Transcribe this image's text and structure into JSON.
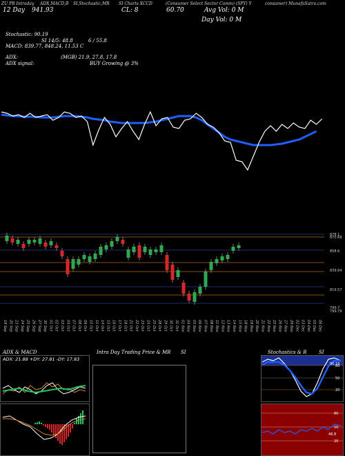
{
  "header": {
    "line1": [
      "ZU PB Intraday",
      "ADX,MACD,B",
      "SI,Stochastic,MR",
      "SI Charts XCCD",
      "(Consumer Select Sector Comm) (SPY) Y",
      "consumer) MunafaSutra.com"
    ],
    "price_row": {
      "open_label": "12 Day",
      "open_value": "941.93",
      "close_label": "CL: 8",
      "close_value": "60.70",
      "avg_label": "Avg Vol: 0  M"
    },
    "day_vol": "Day Vol: 0   M"
  },
  "indicators": {
    "stochastic": "Stochastic: 90.19",
    "si_row": [
      "SI 14/5: 48.8",
      "6 / 55.8"
    ],
    "macd": "MACD: 839.77,  848.24,  11.53 C",
    "adx": "ADX:",
    "adx_values": "(MGB) 21.9,  27.8,  17.8",
    "adx_signal": "ADX  signal:",
    "buy_signal": "BUY Growing @ 3%"
  },
  "price_axis": [
    "878.1",
    "870.68",
    "858.6",
    "839.64",
    "819.57",
    "799.7",
    "799.79"
  ],
  "dates": [
    "19 Sep",
    "20 Sep",
    "23 Sep",
    "24 Sep",
    "25 Sep",
    "26 Sep",
    "27 Sep",
    "30 Sep",
    "01 Oct",
    "02 Oct",
    "03 Oct",
    "04 Oct",
    "07 Oct",
    "08 Oct",
    "09 Oct",
    "10 Oct",
    "11 Oct",
    "14 Oct",
    "15 Oct",
    "16 Oct",
    "17 Oct",
    "18 Oct",
    "21 Oct",
    "22 Oct",
    "23 Oct",
    "24 Oct",
    "25 Oct",
    "28 Oct",
    "29 Oct",
    "30 Oct",
    "31 Oct",
    "01 Nov",
    "04 Nov",
    "05 Nov",
    "06 Nov",
    "07 Nov",
    "08 Nov",
    "11 Nov",
    "12 Nov",
    "13 Nov",
    "14 Nov",
    "15 Nov",
    "18 Nov",
    "19 Nov",
    "20 Nov",
    "21 Nov",
    "22 Nov",
    "25 Nov",
    "26 Nov",
    "27 Nov",
    "29 Nov",
    "02 Dec",
    "03 Dec",
    "04 Dec",
    "05 Dec",
    "06 Dec"
  ],
  "panels": {
    "adx_title": "ADX  & MACD",
    "adx_readout": "ADX: 21.88  +DY: 27.81 -DY: 17.83",
    "intraday_title": "Intra  Day Trading Price  & MR",
    "si_label": "SI",
    "stoch_title": "Stochastics & R",
    "stoch_si": "SI",
    "stoch_levels": [
      "90.19",
      "80",
      "50",
      "20"
    ],
    "rsi_levels": [
      "80",
      "50",
      "20"
    ],
    "rsi_value": "48.8"
  },
  "colors": {
    "candle_up": "#2fa84f",
    "candle_down": "#d62828",
    "avg_line": "#1f5fff",
    "rsi_bg": "#8b0000",
    "grid_orange": "#b5651d",
    "grid_blue": "#2d3a8c"
  }
}
